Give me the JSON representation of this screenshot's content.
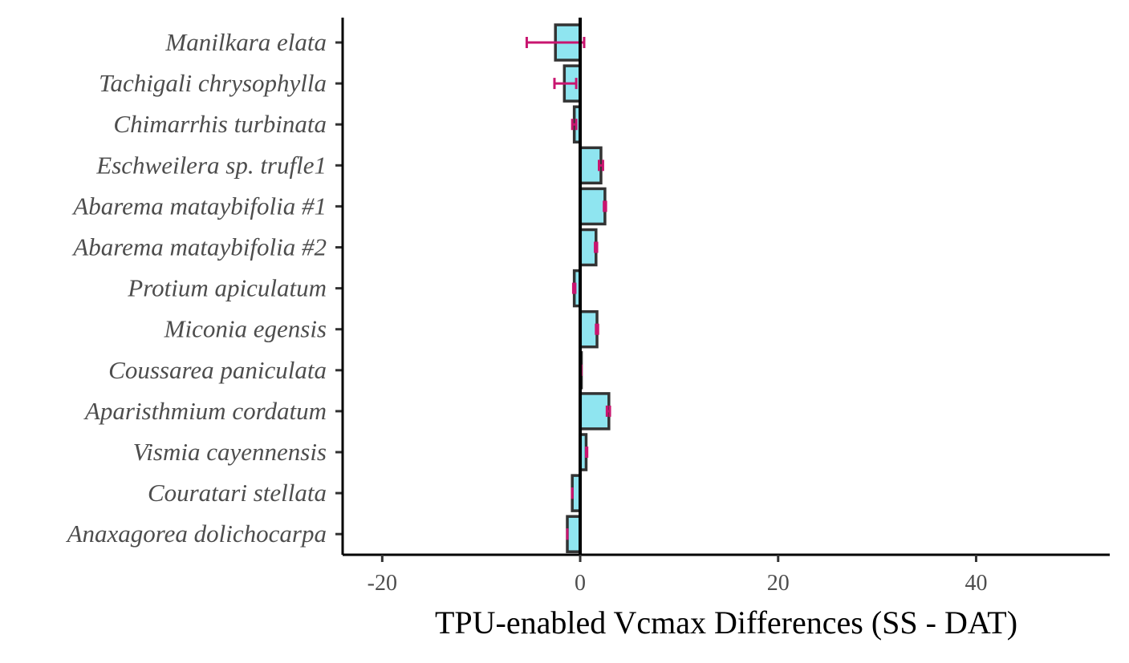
{
  "colors": {
    "bar_fill": "#8fe5f0",
    "bar_stroke": "#333333",
    "error_bar": "#c8156f",
    "axis": "#000000",
    "tick_text": "#4d4d4d"
  },
  "chart_data": {
    "type": "bar",
    "orientation": "horizontal",
    "xlabel": "TPU-enabled Vcmax Differences (SS - DAT)",
    "ylabel": "",
    "xlim": [
      -24,
      53.5
    ],
    "x_ticks": [
      -20,
      0,
      20,
      40
    ],
    "x_tick_labels": [
      "-20",
      "0",
      "20",
      "40"
    ],
    "grid": false,
    "reference_line": 0,
    "categories": [
      "Manilkara elata",
      "Tachigali chrysophylla",
      "Chimarrhis turbinata",
      "Eschweilera sp. trufle1",
      "Abarema mataybifolia #1",
      "Abarema mataybifolia #2",
      "Protium apiculatum",
      "Miconia egensis",
      "Coussarea paniculata",
      "Aparisthmium cordatum",
      "Vismia cayennensis",
      "Couratari stellata",
      "Anaxagorea dolichocarpa"
    ],
    "values": [
      -2.5,
      -1.6,
      -0.6,
      2.1,
      2.5,
      1.6,
      -0.6,
      1.7,
      0.1,
      2.9,
      0.6,
      -0.8,
      -1.3
    ],
    "error_low": [
      -5.4,
      -2.6,
      -0.8,
      1.9,
      2.4,
      1.5,
      -0.7,
      1.6,
      0.1,
      2.7,
      0.6,
      -0.8,
      -1.3
    ],
    "error_high": [
      0.4,
      -0.4,
      -0.4,
      2.3,
      2.6,
      1.7,
      -0.5,
      1.8,
      0.1,
      3.0,
      0.7,
      -0.8,
      -1.3
    ]
  }
}
